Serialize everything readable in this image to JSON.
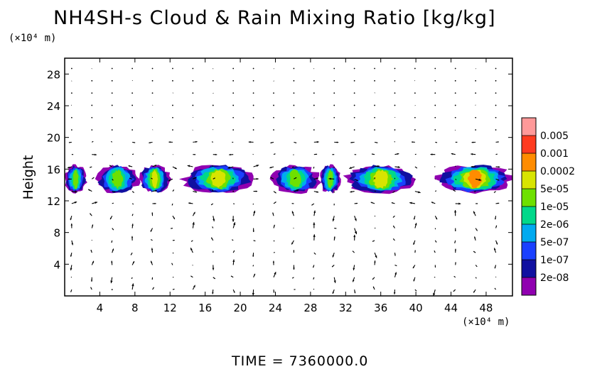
{
  "chart_data": {
    "type": "heatmap",
    "title": "NH4SH-s Cloud & Rain Mixing Ratio [kg/kg]",
    "ylabel": "Height",
    "x_unit": "(×10⁴ m)",
    "y_unit": "(×10⁴ m)",
    "x_ticks": [
      4,
      8,
      12,
      16,
      20,
      24,
      28,
      32,
      36,
      40,
      44,
      48
    ],
    "y_ticks": [
      4,
      8,
      12,
      16,
      20,
      24,
      28
    ],
    "xlim": [
      0,
      51
    ],
    "ylim": [
      0,
      30
    ],
    "colorbar": {
      "labels": [
        "0.005",
        "0.001",
        "0.0002",
        "5e-05",
        "1e-05",
        "2e-06",
        "5e-07",
        "1e-07",
        "2e-08"
      ],
      "colors": [
        "#ff9999",
        "#ff3b1f",
        "#ff8c00",
        "#d8e400",
        "#6ee000",
        "#00d88a",
        "#00aaf0",
        "#1a40ff",
        "#1010a0",
        "#9000b0"
      ]
    },
    "cloud_layer": {
      "y_range": [
        13,
        16.5
      ],
      "clusters": [
        {
          "x": [
            0,
            2.5
          ],
          "peak": "1e-05"
        },
        {
          "x": [
            3.5,
            8.5
          ],
          "peak": "1e-05"
        },
        {
          "x": [
            8.5,
            12
          ],
          "peak": "5e-05"
        },
        {
          "x": [
            13.5,
            21.5
          ],
          "peak": "5e-05"
        },
        {
          "x": [
            23.5,
            29
          ],
          "peak": "1e-05"
        },
        {
          "x": [
            29,
            31.5
          ],
          "peak": "1e-05"
        },
        {
          "x": [
            32,
            40
          ],
          "peak": "5e-05"
        },
        {
          "x": [
            42.5,
            51
          ],
          "peak": "0.0002"
        }
      ]
    },
    "wind_vectors": "shown across full domain"
  },
  "footer": {
    "label": "TIME  =  7360000.0"
  }
}
